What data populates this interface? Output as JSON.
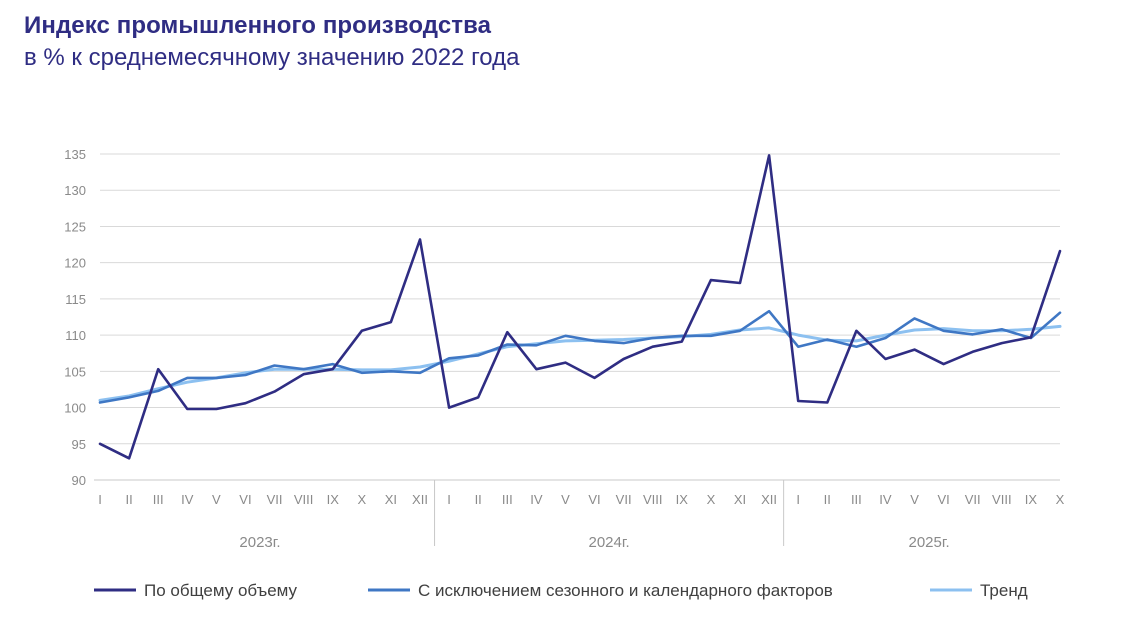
{
  "header": {
    "title": "Индекс промышленного производства",
    "subtitle": "в % к среднемесячному значению 2022 года"
  },
  "chart_data": {
    "type": "line",
    "title": "Индекс промышленного производства",
    "subtitle": "в % к среднемесячному значению 2022 года",
    "ylim": [
      90,
      135
    ],
    "yticks": [
      90,
      95,
      100,
      105,
      110,
      115,
      120,
      125,
      130,
      135
    ],
    "grid": true,
    "legend_position": "bottom",
    "categories": [
      "I",
      "II",
      "III",
      "IV",
      "V",
      "VI",
      "VII",
      "VIII",
      "IX",
      "X",
      "XI",
      "XII",
      "I",
      "II",
      "III",
      "IV",
      "V",
      "VI",
      "VII",
      "VIII",
      "IX",
      "X",
      "XI",
      "XII",
      "I",
      "II",
      "III",
      "IV",
      "V",
      "VI",
      "VII",
      "VIII",
      "IX",
      "X"
    ],
    "years": [
      {
        "label": "2023г.",
        "months": 12
      },
      {
        "label": "2024г.",
        "months": 12
      },
      {
        "label": "2025г.",
        "months": 10
      }
    ],
    "series": [
      {
        "name": "По общему объему",
        "color": "#2f2d83",
        "values": [
          95.0,
          93.0,
          105.3,
          99.8,
          99.8,
          100.6,
          102.2,
          104.6,
          105.3,
          110.6,
          111.8,
          123.2,
          100.0,
          101.4,
          110.4,
          105.3,
          106.2,
          104.1,
          106.7,
          108.4,
          109.1,
          117.6,
          117.2,
          134.8,
          100.9,
          100.7,
          110.6,
          106.7,
          108.0,
          106.0,
          107.7,
          108.9,
          109.7,
          121.6
        ]
      },
      {
        "name": "С исключением сезонного и календарного факторов",
        "color": "#3f77c4",
        "values": [
          100.7,
          101.4,
          102.3,
          104.1,
          104.1,
          104.5,
          105.8,
          105.3,
          106.0,
          104.8,
          105.0,
          104.8,
          106.8,
          107.2,
          108.7,
          108.6,
          109.9,
          109.2,
          108.9,
          109.6,
          109.9,
          109.9,
          110.6,
          113.3,
          108.4,
          109.4,
          108.4,
          109.6,
          112.3,
          110.6,
          110.1,
          110.8,
          109.6,
          113.1
        ]
      },
      {
        "name": "Тренд",
        "color": "#8cc0f0",
        "values": [
          101.0,
          101.6,
          102.6,
          103.5,
          104.1,
          104.8,
          105.3,
          105.3,
          105.3,
          105.2,
          105.2,
          105.6,
          106.4,
          107.4,
          108.4,
          108.8,
          109.2,
          109.3,
          109.4,
          109.6,
          109.8,
          110.1,
          110.7,
          111.0,
          110.0,
          109.3,
          109.2,
          110.0,
          110.7,
          110.9,
          110.6,
          110.6,
          110.8,
          111.2
        ]
      }
    ]
  }
}
